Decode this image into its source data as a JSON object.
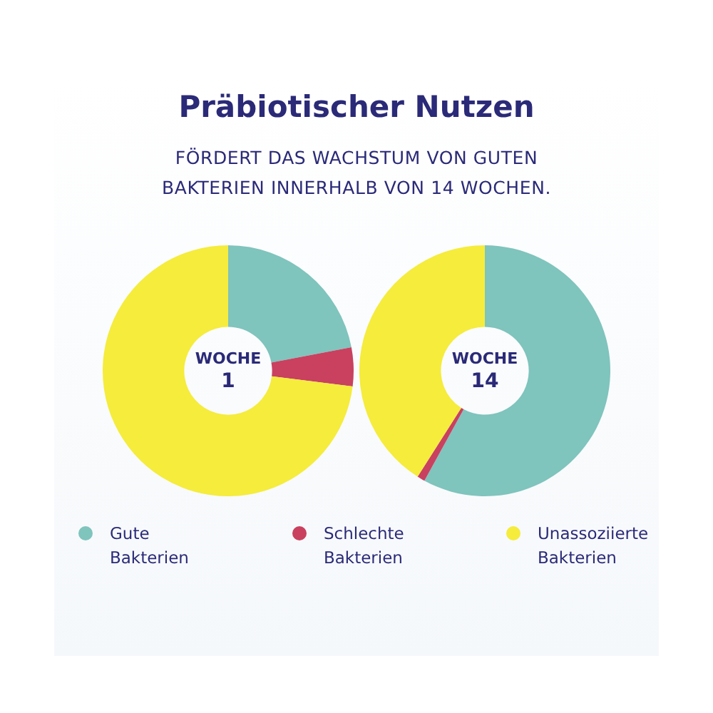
{
  "chart_data": [
    {
      "type": "donut",
      "title": "Präbiotischer Nutzen",
      "subtitle": "FÖRDERT DAS WACHSTUM VON GUTEN BAKTERIEN INNERHALB VON 14 WOCHEN.",
      "categories": [
        "Gute Bakterien",
        "Schlechte Bakterien",
        "Unassoziierte Bakterien"
      ],
      "values": [
        22,
        5,
        73
      ],
      "colors": [
        "#7fc4bd",
        "#c9415f",
        "#f5ec3c"
      ],
      "annotations": [
        "WOCHE\n1"
      ],
      "legend": "bottom"
    },
    {
      "type": "donut",
      "categories": [
        null,
        null,
        null
      ],
      "values": [
        58,
        1,
        41
      ],
      "colors": [
        "#7fc4bd",
        "#c9415f",
        "#f5ec3c"
      ],
      "annotations": [
        "WOCHE\n14"
      ]
    }
  ]
}
